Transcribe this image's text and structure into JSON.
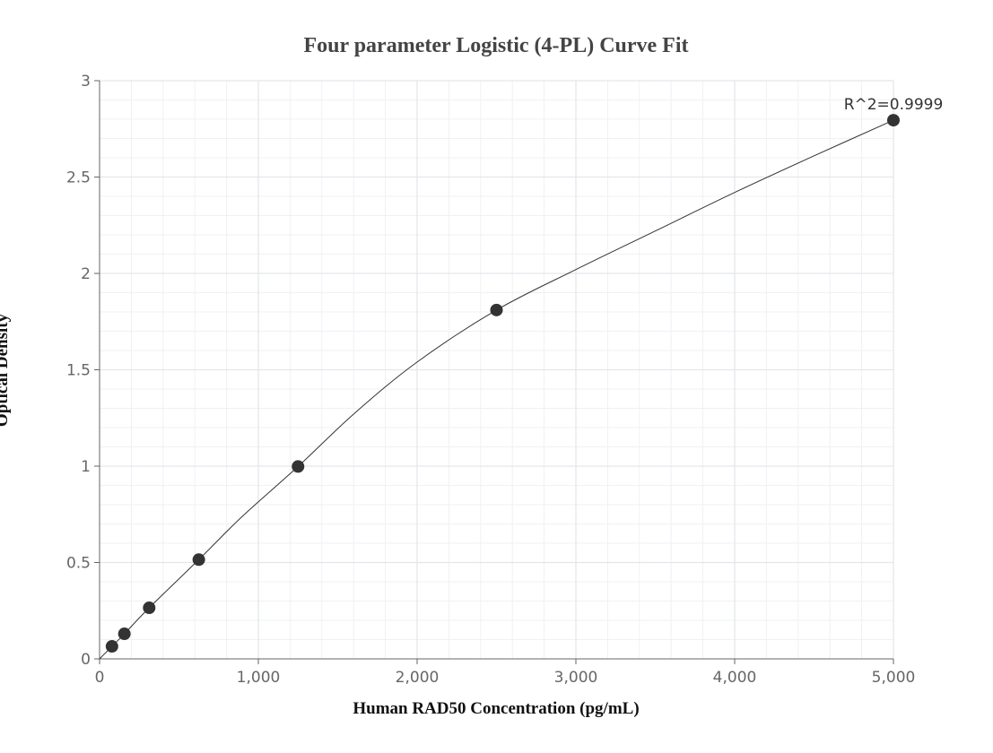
{
  "chart_data": {
    "type": "scatter",
    "title": "Four parameter Logistic (4-PL) Curve Fit",
    "xlabel": "Human RAD50 Concentration (pg/mL)",
    "ylabel": "Optical Density",
    "xlim": [
      0,
      5000
    ],
    "ylim": [
      0,
      3
    ],
    "x_ticks": [
      0,
      1000,
      2000,
      3000,
      4000,
      5000
    ],
    "x_tick_labels": [
      "0",
      "1,000",
      "2,000",
      "3,000",
      "4,000",
      "5,000"
    ],
    "y_ticks": [
      0,
      0.5,
      1,
      1.5,
      2,
      2.5,
      3
    ],
    "y_tick_labels": [
      "0",
      "0.5",
      "1",
      "1.5",
      "2",
      "2.5",
      "3"
    ],
    "grid": true,
    "series": [
      {
        "x": [
          78.125,
          156.25,
          312.5,
          625,
          1250,
          2500,
          5000
        ],
        "y": [
          0.065,
          0.13,
          0.265,
          0.515,
          0.998,
          1.81,
          2.795
        ]
      }
    ],
    "fit_curve": {
      "x": [
        0,
        78.125,
        156.25,
        312.5,
        625,
        900,
        1250,
        1600,
        2000,
        2500,
        3000,
        3500,
        4000,
        4500,
        5000
      ],
      "y": [
        0.0,
        0.065,
        0.13,
        0.265,
        0.515,
        0.74,
        0.998,
        1.27,
        1.54,
        1.81,
        2.02,
        2.22,
        2.42,
        2.61,
        2.795
      ]
    },
    "annotation": "R^2=0.9999",
    "colors": {
      "points": "#333333",
      "curve": "#333333",
      "grid": "#e3e6ec",
      "title": "#444444"
    }
  }
}
